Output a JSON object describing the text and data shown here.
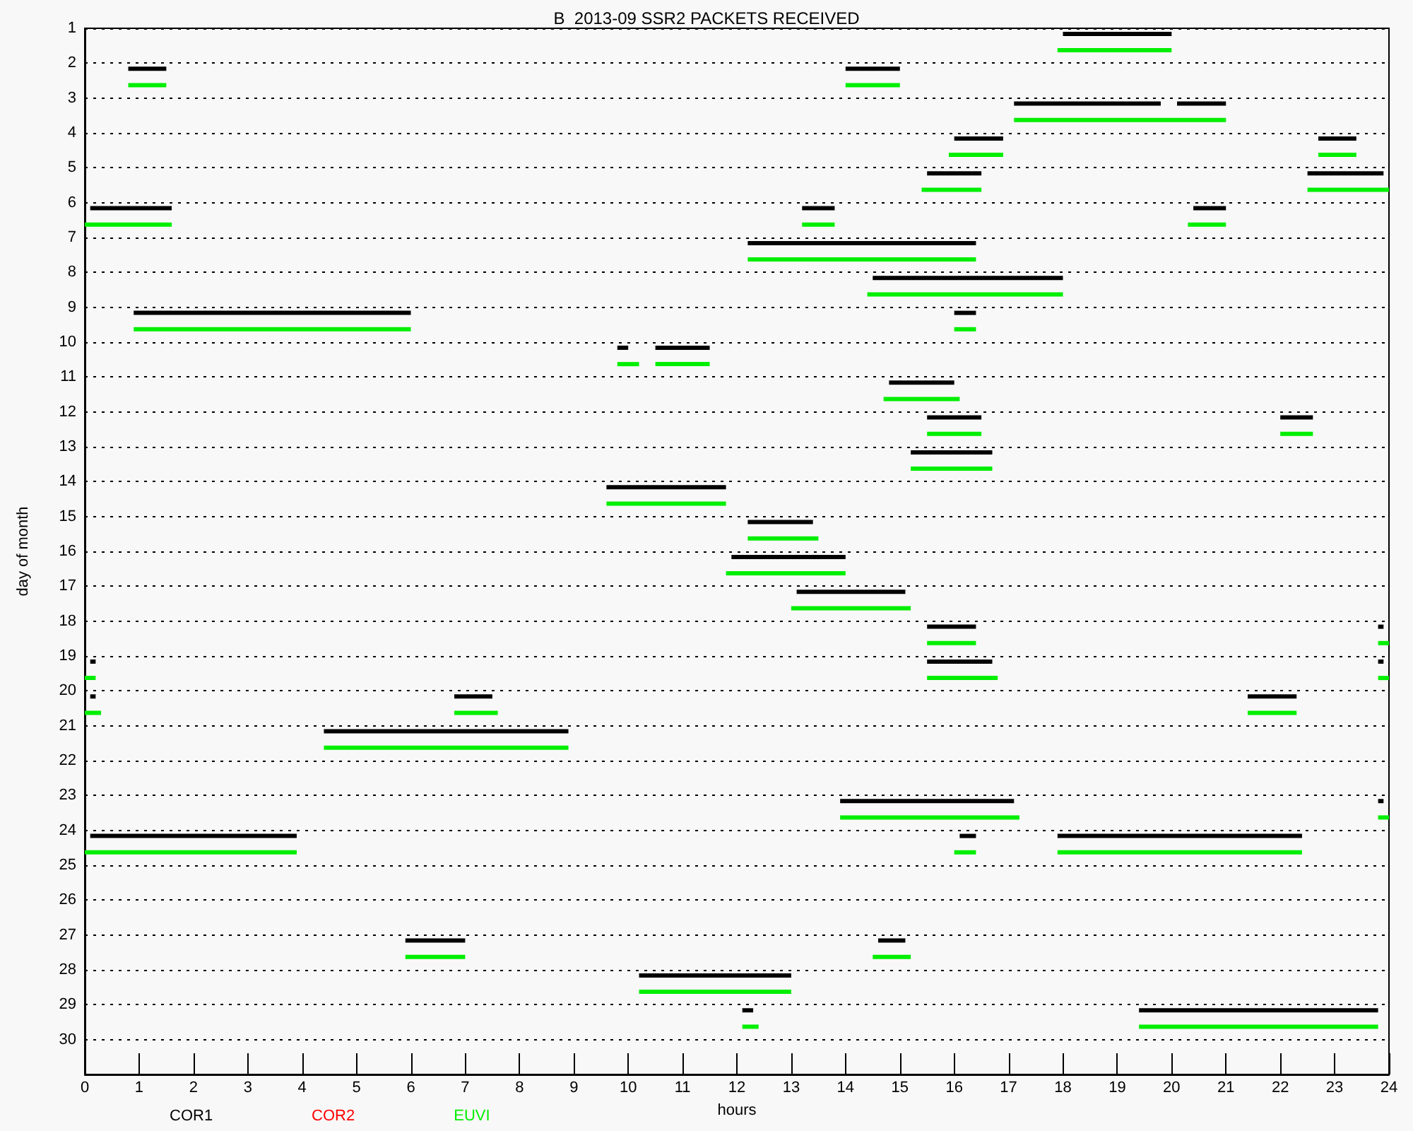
{
  "chart_data": {
    "type": "bar",
    "orientation": "horizontal",
    "title": "B  2013-09 SSR2 PACKETS RECEIVED",
    "xlabel": "hours",
    "ylabel": "day of month",
    "categories": [
      "1",
      "2",
      "3",
      "4",
      "5",
      "6",
      "7",
      "8",
      "9",
      "10",
      "11",
      "12",
      "13",
      "14",
      "15",
      "16",
      "17",
      "18",
      "19",
      "20",
      "21",
      "22",
      "23",
      "24",
      "25",
      "26",
      "27",
      "28",
      "29",
      "30"
    ],
    "xlim": [
      0,
      24
    ],
    "xticks": [
      0,
      1,
      2,
      3,
      4,
      5,
      6,
      7,
      8,
      9,
      10,
      11,
      12,
      13,
      14,
      15,
      16,
      17,
      18,
      19,
      20,
      21,
      22,
      23,
      24
    ],
    "grid": "y",
    "legend": "bottom left",
    "series": [
      {
        "name": "COR1",
        "color": "#000000",
        "base": [
          18.0,
          0.8,
          17.1,
          16.0,
          15.5,
          0.1,
          12.2,
          14.5,
          0.9,
          9.8,
          14.8,
          15.5,
          15.2,
          9.6,
          12.2,
          11.9,
          13.1,
          15.5,
          0.1,
          0.1,
          4.4,
          null,
          13.9,
          0.1,
          null,
          null,
          5.9,
          10.2,
          12.1,
          null
        ],
        "values": [
          2.0,
          0.7,
          2.7,
          0.9,
          1.0,
          1.5,
          4.2,
          3.5,
          5.1,
          0.2,
          1.2,
          1.0,
          1.5,
          2.2,
          1.2,
          2.1,
          2.0,
          0.9,
          0.1,
          0.1,
          4.5,
          null,
          3.2,
          3.8,
          null,
          null,
          1.1,
          2.8,
          0.2,
          null
        ]
      },
      {
        "color": "#000000",
        "base": [
          null,
          14.0,
          20.1,
          22.7,
          22.5,
          13.2,
          null,
          null,
          16.0,
          10.5,
          null,
          22.0,
          null,
          null,
          null,
          null,
          null,
          23.8,
          15.5,
          6.8,
          null,
          null,
          23.8,
          16.1,
          null,
          null,
          14.6,
          null,
          19.4,
          null
        ],
        "values": [
          null,
          1.0,
          0.9,
          0.7,
          1.4,
          0.6,
          null,
          null,
          0.4,
          1.0,
          null,
          0.6,
          null,
          null,
          null,
          null,
          null,
          0.1,
          1.2,
          0.7,
          null,
          null,
          0.1,
          0.3,
          null,
          null,
          0.5,
          null,
          4.4,
          null
        ]
      },
      {
        "color": "#000000",
        "base": [
          null,
          null,
          null,
          null,
          null,
          20.4,
          null,
          null,
          null,
          null,
          null,
          null,
          null,
          null,
          null,
          null,
          null,
          null,
          23.8,
          21.4,
          null,
          null,
          null,
          17.9,
          null,
          null,
          null,
          null,
          null,
          null
        ],
        "values": [
          null,
          null,
          null,
          null,
          null,
          0.6,
          null,
          null,
          null,
          null,
          null,
          null,
          null,
          null,
          null,
          null,
          null,
          null,
          0.1,
          0.9,
          null,
          null,
          null,
          4.5,
          null,
          null,
          null,
          null,
          null,
          null
        ]
      },
      {
        "name": "COR2",
        "color": "#ff0000",
        "values": [
          null,
          null,
          null,
          null,
          null,
          null,
          null,
          null,
          null,
          null,
          null,
          null,
          null,
          null,
          null,
          null,
          null,
          null,
          null,
          null,
          null,
          null,
          null,
          null,
          null,
          null,
          null,
          null,
          null,
          null
        ]
      },
      {
        "name": "EUVI",
        "color": "#00ee00",
        "base": [
          17.9,
          0.8,
          17.1,
          15.9,
          15.4,
          0.0,
          12.2,
          14.4,
          0.9,
          9.8,
          14.7,
          15.5,
          15.2,
          9.6,
          12.2,
          11.8,
          13.0,
          15.5,
          0.0,
          0.0,
          4.4,
          null,
          13.9,
          0.0,
          null,
          null,
          5.9,
          10.2,
          12.1,
          null
        ],
        "values": [
          2.1,
          0.7,
          3.9,
          1.0,
          1.1,
          1.6,
          4.2,
          3.6,
          5.1,
          0.4,
          1.4,
          1.0,
          1.5,
          2.2,
          1.3,
          2.2,
          2.2,
          0.9,
          0.2,
          0.3,
          4.5,
          null,
          3.3,
          3.9,
          null,
          null,
          1.1,
          2.8,
          0.3,
          null
        ]
      },
      {
        "color": "#00ee00",
        "base": [
          null,
          14.0,
          null,
          22.7,
          22.5,
          13.2,
          null,
          null,
          16.0,
          10.5,
          null,
          22.0,
          null,
          null,
          null,
          null,
          null,
          23.8,
          15.5,
          6.8,
          null,
          null,
          23.8,
          16.0,
          null,
          null,
          14.5,
          null,
          19.4,
          null
        ],
        "values": [
          null,
          1.0,
          null,
          0.7,
          1.5,
          0.6,
          null,
          null,
          0.4,
          1.0,
          null,
          0.6,
          null,
          null,
          null,
          null,
          null,
          0.2,
          1.3,
          0.8,
          null,
          null,
          0.2,
          0.4,
          null,
          null,
          0.7,
          null,
          4.4,
          null
        ]
      },
      {
        "color": "#00ee00",
        "base": [
          null,
          null,
          null,
          null,
          null,
          20.3,
          null,
          null,
          null,
          null,
          null,
          null,
          null,
          null,
          null,
          null,
          null,
          null,
          23.8,
          21.4,
          null,
          null,
          null,
          17.9,
          null,
          null,
          null,
          null,
          null,
          null
        ],
        "values": [
          null,
          null,
          null,
          null,
          null,
          0.7,
          null,
          null,
          null,
          null,
          null,
          null,
          null,
          null,
          null,
          null,
          null,
          null,
          0.2,
          0.9,
          null,
          null,
          null,
          4.5,
          null,
          null,
          null,
          null,
          null,
          null
        ]
      }
    ]
  }
}
